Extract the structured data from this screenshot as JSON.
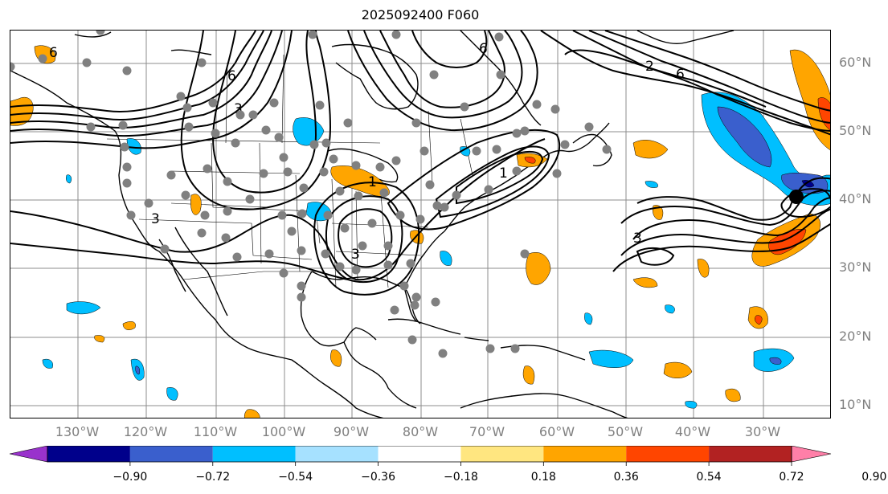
{
  "title": "2025092400 F060",
  "map": {
    "type": "weather-forecast-map",
    "region": "North Atlantic / North America",
    "lat_labels": [
      "60°N",
      "50°N",
      "40°N",
      "30°N",
      "20°N",
      "10°N"
    ],
    "lon_labels": [
      "130°W",
      "120°W",
      "110°W",
      "100°W",
      "90°W",
      "80°W",
      "70°W",
      "60°W",
      "50°W",
      "40°W",
      "30°W"
    ],
    "contour_labels": [
      "6",
      "6",
      "6",
      "6",
      "3",
      "3",
      "3",
      "3",
      "1",
      "1",
      "2"
    ],
    "marker_color": "#808080",
    "highlight_marker_color": "#000000",
    "gridlines": true
  },
  "colorbar": {
    "ticks": [
      "−0.90",
      "−0.72",
      "−0.54",
      "−0.36",
      "−0.18",
      "0.18",
      "0.36",
      "0.54",
      "0.72",
      "0.90"
    ],
    "colors": [
      "#9932cc",
      "#00008b",
      "#3a5fcd",
      "#00bfff",
      "#a6e1ff",
      "#ffffff",
      "#ffe680",
      "#ffa500",
      "#ff4500",
      "#b22222",
      "#ff7fa8"
    ]
  }
}
